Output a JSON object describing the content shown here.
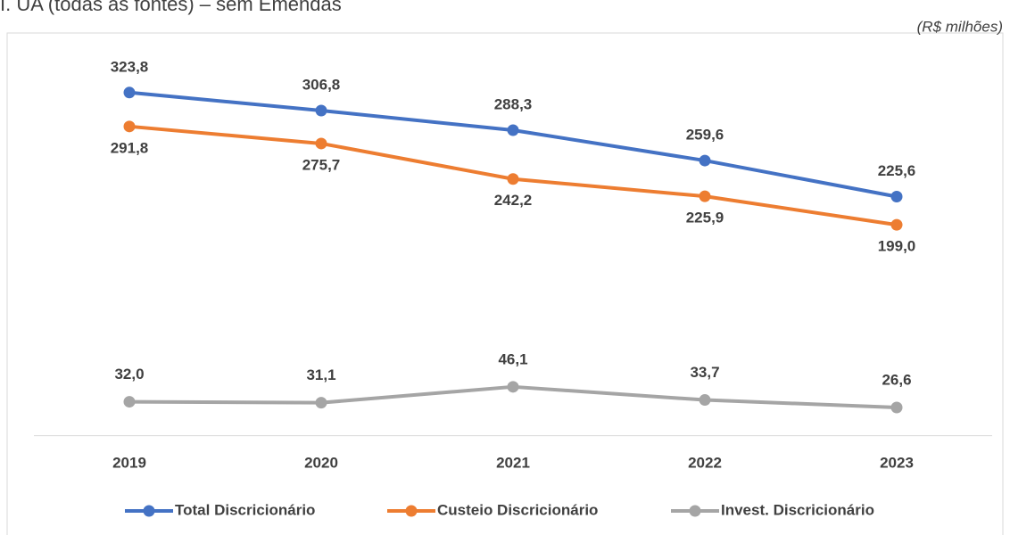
{
  "chart_data": {
    "type": "line",
    "title": "I. UA (todas as fontes) – sem Emendas",
    "subtitle": "(R$ milhões)",
    "categories": [
      "2019",
      "2020",
      "2021",
      "2022",
      "2023"
    ],
    "series": [
      {
        "name": "Total Discricionário",
        "color": "#4472c4",
        "values": [
          323.8,
          306.8,
          288.3,
          259.6,
          225.6
        ],
        "value_labels": [
          "323,8",
          "306,8",
          "288,3",
          "259,6",
          "225,6"
        ]
      },
      {
        "name": "Custeio Discricionário",
        "color": "#ed7d31",
        "values": [
          291.8,
          275.7,
          242.2,
          225.9,
          199.0
        ],
        "value_labels": [
          "291,8",
          "275,7",
          "242,2",
          "225,9",
          "199,0"
        ]
      },
      {
        "name": "Invest. Discricionário",
        "color": "#a5a5a5",
        "values": [
          32.0,
          31.1,
          46.1,
          33.7,
          26.6
        ],
        "value_labels": [
          "32,0",
          "31,1",
          "46,1",
          "33,7",
          "26,6"
        ]
      }
    ],
    "ylim": [
      0,
      380
    ],
    "legend": "bottom"
  }
}
